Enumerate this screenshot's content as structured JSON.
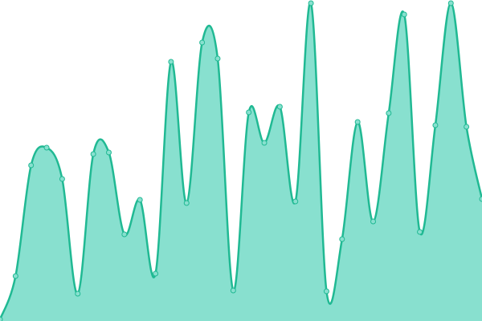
{
  "chart_data": {
    "type": "area",
    "categories": [
      null,
      null,
      null,
      null,
      null,
      null,
      null,
      null,
      null,
      null,
      null,
      null,
      null,
      null,
      null,
      null,
      null,
      null,
      null,
      null,
      null,
      null,
      null,
      null,
      null,
      null,
      null,
      null,
      null,
      null,
      null,
      null
    ],
    "values": [
      2,
      56,
      194,
      216,
      177,
      34,
      208,
      210,
      108,
      151,
      59,
      323,
      147,
      347,
      327,
      38,
      260,
      222,
      267,
      149,
      396,
      37,
      102,
      248,
      124,
      259,
      382,
      111,
      244,
      396,
      242,
      152
    ],
    "color": "#20b993",
    "fill_color": "#88e0cf",
    "ylim": [
      0,
      400
    ]
  }
}
